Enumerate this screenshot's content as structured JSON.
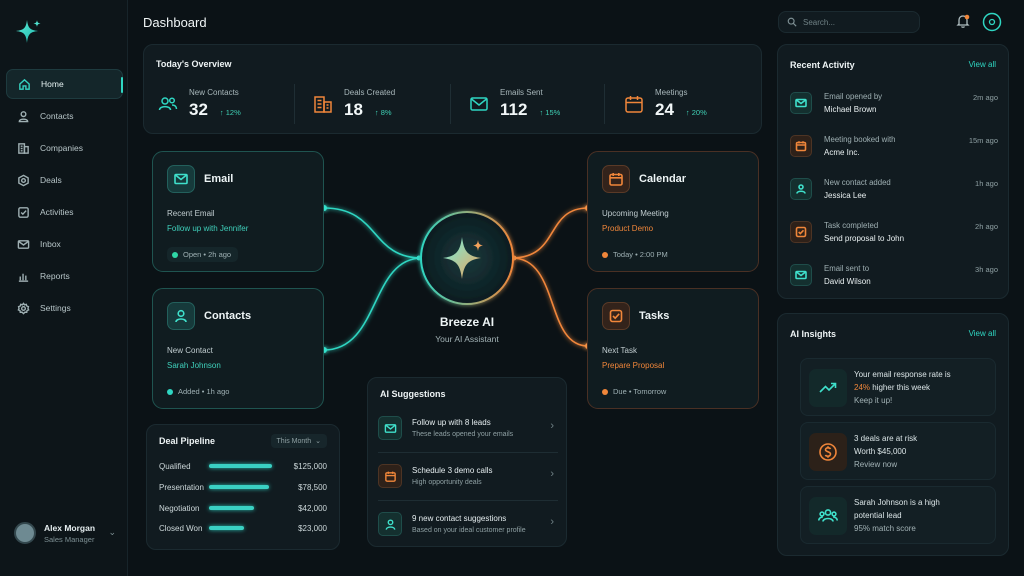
{
  "sidebar": {
    "items": [
      {
        "label": "Home",
        "icon": "home-icon"
      },
      {
        "label": "Contacts",
        "icon": "user-icon"
      },
      {
        "label": "Companies",
        "icon": "building-icon"
      },
      {
        "label": "Deals",
        "icon": "target-icon"
      },
      {
        "label": "Activities",
        "icon": "checkbox-icon"
      },
      {
        "label": "Inbox",
        "icon": "mail-icon"
      },
      {
        "label": "Reports",
        "icon": "bar-chart-icon"
      },
      {
        "label": "Settings",
        "icon": "gear-icon"
      }
    ],
    "user": {
      "name": "Alex Morgan",
      "role": "Sales Manager"
    }
  },
  "header": {
    "title": "Dashboard",
    "search_placeholder": "Search..."
  },
  "overview": {
    "title": "Today's Overview",
    "stats": [
      {
        "label": "New Contacts",
        "value": "32",
        "delta": "12%"
      },
      {
        "label": "Deals Created",
        "value": "18",
        "delta": "8%"
      },
      {
        "label": "Emails Sent",
        "value": "112",
        "delta": "15%"
      },
      {
        "label": "Meetings",
        "value": "24",
        "delta": "20%"
      }
    ]
  },
  "hub": {
    "name": "Breeze AI",
    "subtitle": "Your AI Assistant",
    "email": {
      "title": "Email",
      "sub": "Recent Email",
      "highlight": "Follow up with Jennifer",
      "status": "Open • 2h ago"
    },
    "contacts": {
      "title": "Contacts",
      "sub": "New Contact",
      "highlight": "Sarah Johnson",
      "status": "Added • 1h ago"
    },
    "calendar": {
      "title": "Calendar",
      "sub": "Upcoming Meeting",
      "highlight": "Product Demo",
      "status": "Today • 2:00 PM"
    },
    "tasks": {
      "title": "Tasks",
      "sub": "Next Task",
      "highlight": "Prepare Proposal",
      "status": "Due • Tomorrow"
    }
  },
  "pipeline": {
    "title": "Deal Pipeline",
    "filter": "This Month",
    "rows": [
      {
        "label": "Qualified",
        "value": "$125,000",
        "fill": 1.0
      },
      {
        "label": "Presentation",
        "value": "$78,500",
        "fill": 0.95
      },
      {
        "label": "Negotiation",
        "value": "$42,000",
        "fill": 0.72
      },
      {
        "label": "Closed Won",
        "value": "$23,000",
        "fill": 0.55
      }
    ]
  },
  "suggestions": {
    "title": "AI Suggestions",
    "items": [
      {
        "l1": "Follow up with 8 leads",
        "l2": "These leads opened your emails"
      },
      {
        "l1": "Schedule 3 demo calls",
        "l2": "High opportunity deals"
      },
      {
        "l1": "9 new contact suggestions",
        "l2": "Based on your ideal customer profile"
      }
    ]
  },
  "activity": {
    "title": "Recent Activity",
    "view_all": "View all",
    "items": [
      {
        "l1": "Email opened by",
        "l2": "Michael Brown",
        "time": "2m ago"
      },
      {
        "l1": "Meeting booked with",
        "l2": "Acme Inc.",
        "time": "15m ago"
      },
      {
        "l1": "New contact added",
        "l2": "Jessica Lee",
        "time": "1h ago"
      },
      {
        "l1": "Task completed",
        "l2": "Send proposal to John",
        "time": "2h ago"
      },
      {
        "l1": "Email sent to",
        "l2": "David Wilson",
        "time": "3h ago"
      }
    ]
  },
  "insights": {
    "title": "AI Insights",
    "view_all": "View all",
    "items": [
      {
        "l1": "Your email response rate is",
        "l2": "24%",
        "l2b": " higher this week",
        "l3": "Keep it up!"
      },
      {
        "l1": "3 deals are at risk",
        "l2": "Worth $45,000",
        "l3": "Review now"
      },
      {
        "l1": "Sarah Johnson is a high",
        "l2": "potential lead",
        "l3": "95% match score"
      }
    ]
  },
  "colors": {
    "teal": "#2fd6c2",
    "orange": "#f0863a",
    "bg": "#0b1216"
  }
}
